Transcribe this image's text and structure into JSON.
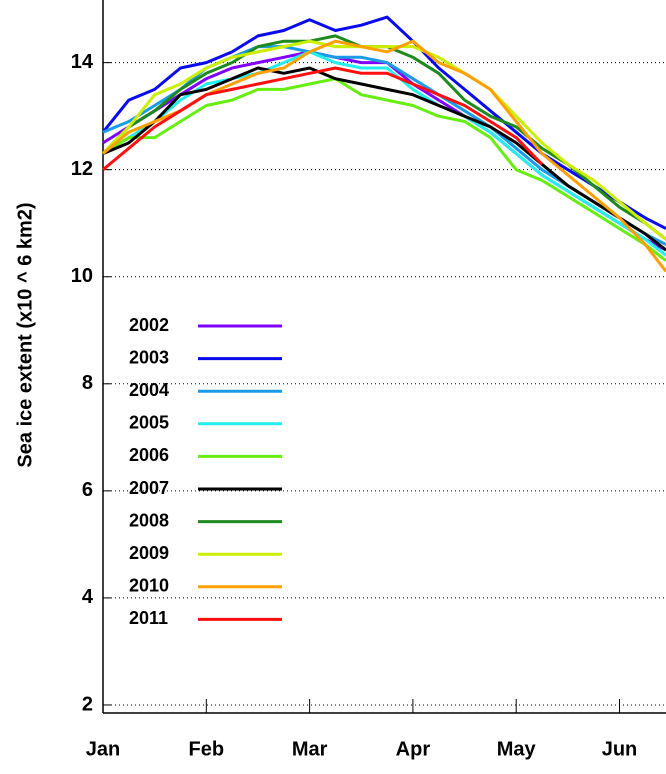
{
  "chart_data": {
    "type": "line",
    "ylabel": "Sea ice extent (x10 ^ 6 km2)",
    "x": [
      0,
      0.25,
      0.5,
      0.75,
      1,
      1.25,
      1.5,
      1.75,
      2,
      2.25,
      2.5,
      2.75,
      3,
      3.25,
      3.5,
      3.75,
      4,
      4.25,
      4.5,
      4.75,
      5,
      5.25,
      5.45
    ],
    "xlim": [
      0,
      5.45
    ],
    "xticks": [
      {
        "value": 0,
        "label": "Jan"
      },
      {
        "value": 1,
        "label": "Feb"
      },
      {
        "value": 2,
        "label": "Mar"
      },
      {
        "value": 3,
        "label": "Apr"
      },
      {
        "value": 4,
        "label": "May"
      },
      {
        "value": 5,
        "label": "Jun"
      }
    ],
    "ylim": [
      1.85,
      15.17
    ],
    "yticks": [
      2,
      4,
      6,
      8,
      10,
      12,
      14
    ],
    "grid": true,
    "legend": "left",
    "series": [
      {
        "name": "2002",
        "color": "#8000ff",
        "values": [
          12.5,
          12.8,
          13.1,
          13.4,
          13.7,
          13.9,
          14.0,
          14.1,
          14.2,
          14.1,
          14.0,
          14.0,
          13.6,
          13.3,
          13.0,
          12.7,
          12.3,
          11.9,
          11.6,
          11.3,
          11.0,
          10.7,
          10.5
        ]
      },
      {
        "name": "2003",
        "color": "#0a0aee",
        "values": [
          12.7,
          13.3,
          13.5,
          13.9,
          14.0,
          14.2,
          14.5,
          14.6,
          14.8,
          14.6,
          14.7,
          14.85,
          14.4,
          13.9,
          13.5,
          13.1,
          12.7,
          12.3,
          12.0,
          11.7,
          11.4,
          11.1,
          10.9
        ]
      },
      {
        "name": "2004",
        "color": "#1a9be6",
        "values": [
          12.7,
          12.9,
          13.2,
          13.5,
          13.9,
          14.1,
          14.3,
          14.3,
          14.2,
          14.1,
          14.1,
          14.0,
          13.7,
          13.4,
          13.1,
          12.8,
          12.4,
          12.0,
          11.7,
          11.4,
          11.1,
          10.8,
          10.6
        ]
      },
      {
        "name": "2005",
        "color": "#22eeee",
        "values": [
          12.3,
          12.6,
          12.9,
          13.3,
          13.6,
          13.7,
          13.8,
          14.0,
          14.2,
          14.0,
          13.9,
          13.9,
          13.5,
          13.2,
          13.0,
          12.7,
          12.3,
          11.9,
          11.6,
          11.3,
          11.0,
          10.7,
          10.4
        ]
      },
      {
        "name": "2006",
        "color": "#66ee11",
        "values": [
          12.3,
          12.6,
          12.6,
          12.9,
          13.2,
          13.3,
          13.5,
          13.5,
          13.6,
          13.7,
          13.4,
          13.3,
          13.2,
          13.0,
          12.9,
          12.6,
          12.0,
          11.8,
          11.5,
          11.2,
          10.9,
          10.6,
          10.3
        ]
      },
      {
        "name": "2007",
        "color": "#000000",
        "values": [
          12.3,
          12.5,
          12.9,
          13.4,
          13.5,
          13.7,
          13.9,
          13.8,
          13.9,
          13.7,
          13.6,
          13.5,
          13.4,
          13.2,
          13.0,
          12.8,
          12.5,
          12.1,
          11.7,
          11.4,
          11.1,
          10.8,
          10.5
        ]
      },
      {
        "name": "2008",
        "color": "#1e8a1e",
        "values": [
          12.3,
          12.8,
          13.1,
          13.5,
          13.8,
          14.0,
          14.3,
          14.4,
          14.4,
          14.5,
          14.3,
          14.3,
          14.1,
          13.8,
          13.3,
          13.0,
          12.8,
          12.4,
          12.1,
          11.7,
          11.3,
          11.0,
          10.7
        ]
      },
      {
        "name": "2009",
        "color": "#ccee00",
        "values": [
          12.3,
          12.8,
          13.4,
          13.6,
          13.9,
          14.1,
          14.2,
          14.3,
          14.4,
          14.3,
          14.3,
          14.3,
          14.3,
          14.1,
          13.8,
          13.5,
          13.0,
          12.5,
          12.1,
          11.8,
          11.4,
          11.0,
          10.7
        ]
      },
      {
        "name": "2010",
        "color": "#ffa000",
        "values": [
          12.3,
          12.7,
          12.9,
          13.1,
          13.4,
          13.6,
          13.8,
          13.9,
          14.2,
          14.4,
          14.3,
          14.2,
          14.4,
          14.0,
          13.8,
          13.5,
          12.9,
          12.3,
          11.9,
          11.5,
          11.1,
          10.6,
          10.1
        ]
      },
      {
        "name": "2011",
        "color": "#ff1010",
        "values": [
          12.0,
          12.4,
          12.8,
          13.1,
          13.4,
          13.5,
          13.6,
          13.7,
          13.8,
          13.9,
          13.8,
          13.8,
          13.6,
          13.4,
          13.2,
          12.9,
          12.6,
          12.1,
          null,
          null,
          null,
          null,
          null
        ]
      }
    ]
  }
}
